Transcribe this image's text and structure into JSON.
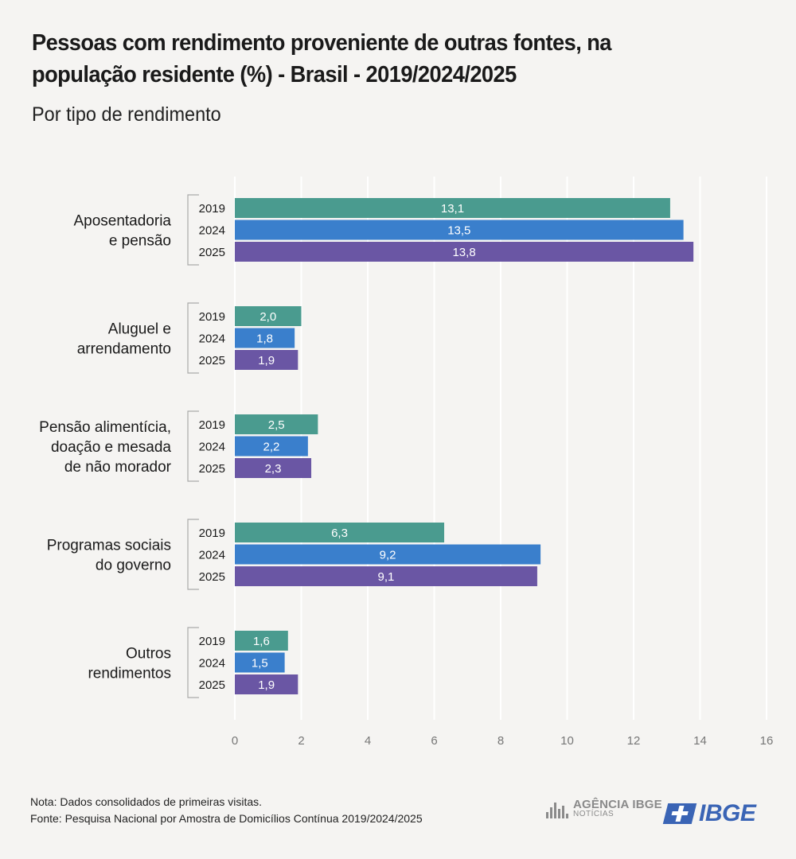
{
  "header": {
    "title": "Pessoas com rendimento proveniente de outras fontes, na população residente (%) - Brasil - 2019/2024/2025",
    "subtitle": "Por tipo de rendimento"
  },
  "chart_data": {
    "type": "bar",
    "orientation": "horizontal",
    "categories": [
      [
        "Aposentadoria",
        "e pensão"
      ],
      [
        "Aluguel e",
        "arrendamento"
      ],
      [
        "Pensão alimentícia,",
        "doação e mesada",
        "de não morador"
      ],
      [
        "Programas sociais",
        "do governo"
      ],
      [
        "Outros",
        "rendimentos"
      ]
    ],
    "series": [
      {
        "name": "2019",
        "color": "#4a9b8f",
        "values": [
          13.1,
          2.0,
          2.5,
          6.3,
          1.6
        ],
        "labels": [
          "13,1",
          "2,0",
          "2,5",
          "6,3",
          "1,6"
        ]
      },
      {
        "name": "2024",
        "color": "#3a7fcc",
        "values": [
          13.5,
          1.8,
          2.2,
          9.2,
          1.5
        ],
        "labels": [
          "13,5",
          "1,8",
          "2,2",
          "9,2",
          "1,5"
        ]
      },
      {
        "name": "2025",
        "color": "#6a56a4",
        "values": [
          13.8,
          1.9,
          2.3,
          9.1,
          1.9
        ],
        "labels": [
          "13,8",
          "1,9",
          "2,3",
          "9,1",
          "1,9"
        ]
      }
    ],
    "xlim": [
      0,
      16
    ],
    "xticks": [
      "0",
      "2",
      "4",
      "6",
      "8",
      "10",
      "12",
      "14",
      "16"
    ],
    "grid": true
  },
  "footer": {
    "note": "Nota: Dados consolidados de primeiras visitas.",
    "source": "Fonte: Pesquisa Nacional por Amostra de Domicílios Contínua 2019/2024/2025"
  },
  "logos": {
    "agencia_line1": "AGÊNCIA IBGE",
    "agencia_line2": "NOTÍCIAS",
    "ibge": "IBGE"
  }
}
